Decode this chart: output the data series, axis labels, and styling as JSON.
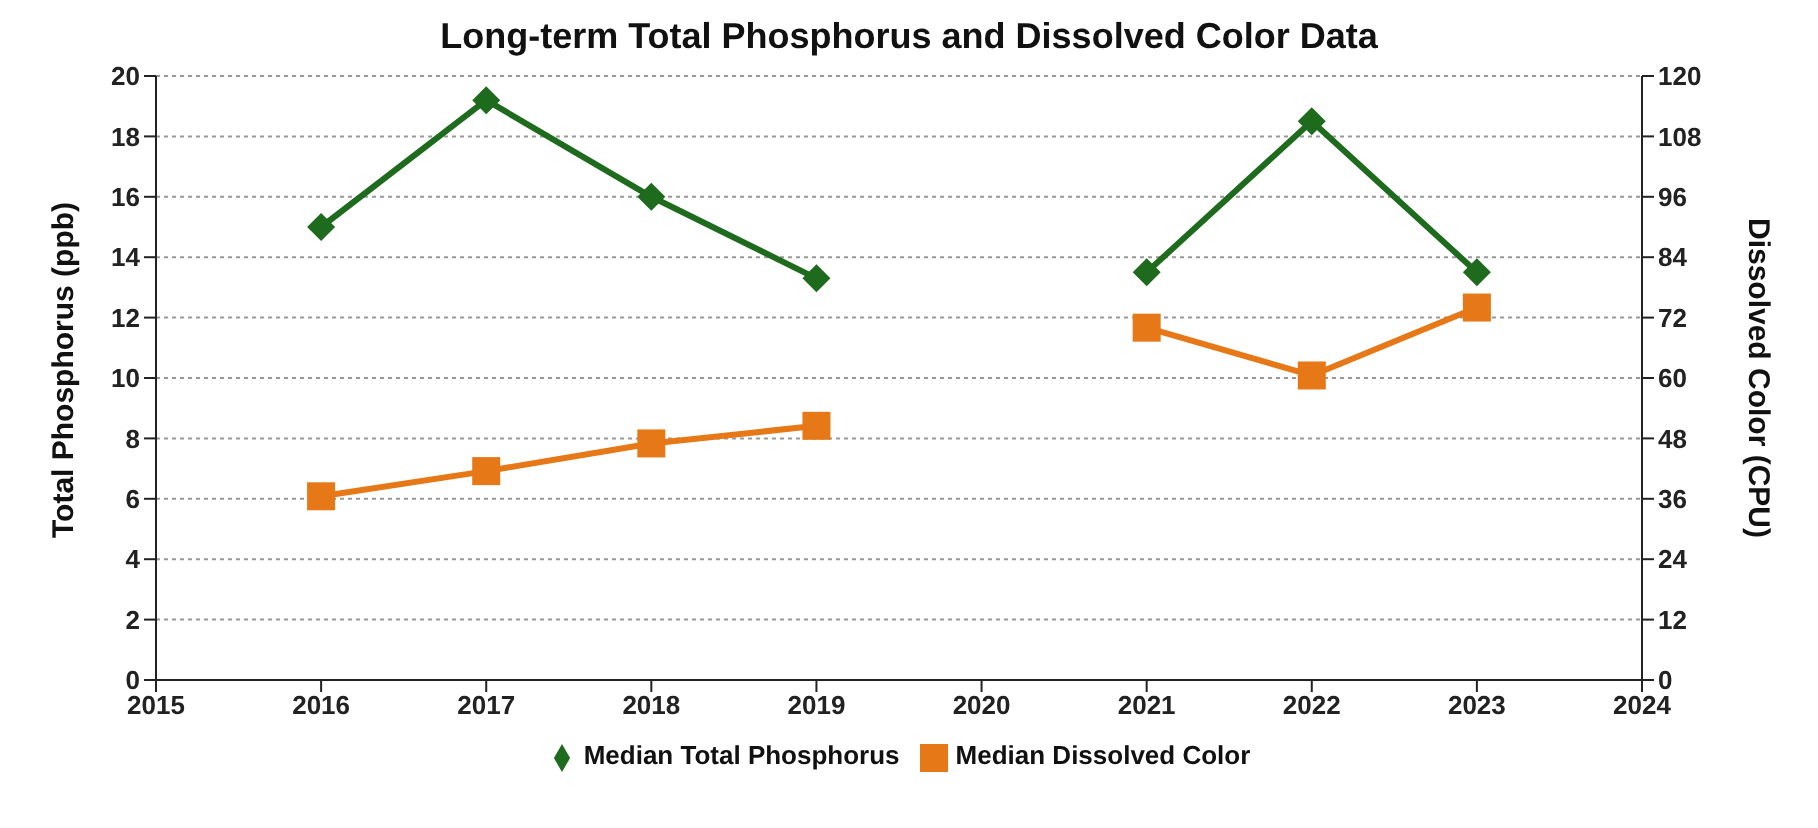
{
  "chart_data": {
    "type": "line",
    "title": "Long-term Total Phosphorus and Dissolved Color Data",
    "ylabel": "Total Phosphorus (ppb)",
    "y2label": "Dissolved Color (CPU)",
    "x": [
      2016,
      2017,
      2018,
      2019,
      2020,
      2021,
      2022,
      2023
    ],
    "series": [
      {
        "name": "Median Total Phosphorus",
        "color": "#1e6b1e",
        "marker": "diamond",
        "values": [
          15.0,
          19.2,
          16.0,
          13.3,
          null,
          13.5,
          18.5,
          13.5
        ]
      },
      {
        "name": "Median Dissolved Color",
        "color": "#e67817",
        "marker": "square",
        "axis": "y2",
        "values": [
          36.5,
          41.5,
          47,
          50.5,
          null,
          70,
          60.5,
          74
        ]
      }
    ],
    "xlim": [
      2015,
      2024
    ],
    "xticks": [
      2015,
      2016,
      2017,
      2018,
      2019,
      2020,
      2021,
      2022,
      2023,
      2024
    ],
    "ylim": [
      0,
      20
    ],
    "yticks": [
      0,
      2,
      4,
      6,
      8,
      10,
      12,
      14,
      16,
      18,
      20
    ],
    "y2lim": [
      0,
      120
    ],
    "y2ticks": [
      0,
      12,
      24,
      36,
      48,
      60,
      72,
      84,
      96,
      108,
      120
    ],
    "grid": "y",
    "legend": "bottom"
  }
}
